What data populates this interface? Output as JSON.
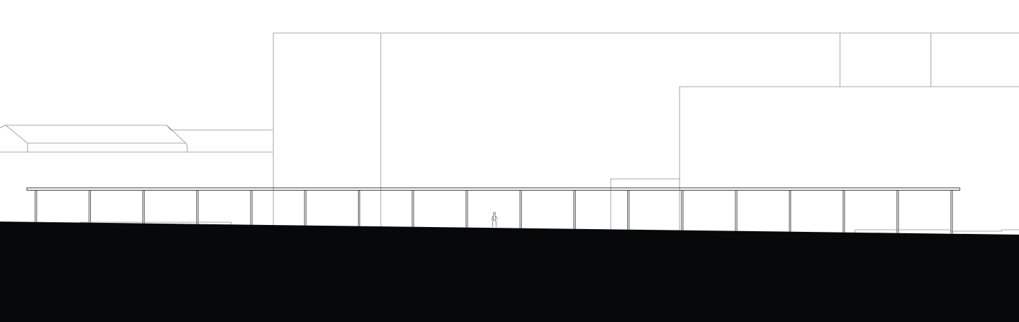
{
  "drawing": {
    "type": "architectural-elevation",
    "colors": {
      "background": "#ffffff",
      "linework": "#8a8a8a",
      "canopy": "#3a3a3a",
      "ground": "#07080a"
    },
    "canopy": {
      "column_count": 18
    },
    "elements": [
      "background-buildings",
      "pitched-roof-building",
      "canopy",
      "columns",
      "human-figure",
      "ground-section"
    ]
  }
}
